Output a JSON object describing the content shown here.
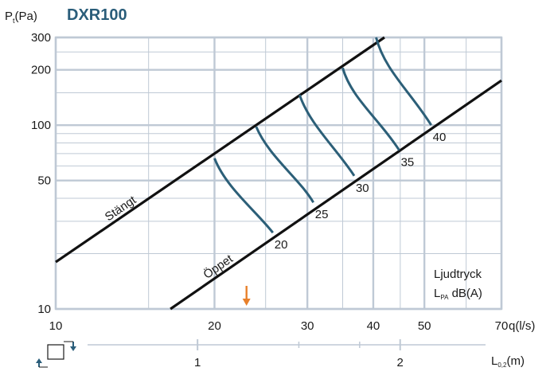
{
  "chart_data": {
    "type": "line",
    "title": "DXR100",
    "ylabel": {
      "main": "P",
      "sub": "t",
      "tail": "(Pa)"
    },
    "xlabel": "q(l/s)",
    "x_scale": "log",
    "y_scale": "log",
    "xlim": [
      10,
      70
    ],
    "ylim": [
      10,
      300
    ],
    "x_ticks": [
      10,
      20,
      30,
      40,
      50,
      70
    ],
    "x_tick_labels": [
      "10",
      "20",
      "30",
      "40",
      "50",
      "70"
    ],
    "y_ticks": [
      10,
      50,
      100,
      200,
      300
    ],
    "y_tick_labels": [
      "10",
      "50",
      "100",
      "200",
      "300"
    ],
    "x_minor_grid": [
      15,
      25,
      35,
      45,
      60
    ],
    "y_minor_grid": [
      20,
      30,
      40,
      60,
      70,
      80,
      90,
      150,
      250
    ],
    "grid": true,
    "boundary_lines": [
      {
        "name": "Stängt",
        "points": [
          [
            10,
            18.0
          ],
          [
            42.0,
            300
          ]
        ]
      },
      {
        "name": "Öppet",
        "points": [
          [
            16.5,
            10
          ],
          [
            70,
            175
          ]
        ]
      }
    ],
    "sound_curves": [
      {
        "label": "20",
        "points": [
          [
            20.0,
            66
          ],
          [
            21.0,
            46
          ],
          [
            24.0,
            34
          ],
          [
            25.8,
            26
          ]
        ]
      },
      {
        "label": "25",
        "points": [
          [
            24.0,
            98
          ],
          [
            25.3,
            68
          ],
          [
            29.0,
            51
          ],
          [
            30.8,
            38
          ]
        ]
      },
      {
        "label": "30",
        "points": [
          [
            29.0,
            146
          ],
          [
            30.3,
            101
          ],
          [
            34.0,
            75
          ],
          [
            36.8,
            53
          ]
        ]
      },
      {
        "label": "35",
        "points": [
          [
            35.0,
            205
          ],
          [
            36.3,
            141
          ],
          [
            41.0,
            108
          ],
          [
            44.8,
            73
          ]
        ]
      },
      {
        "label": "40",
        "points": [
          [
            40.5,
            300
          ],
          [
            42.0,
            200
          ],
          [
            47.0,
            152
          ],
          [
            51.5,
            100
          ]
        ]
      }
    ],
    "annotation": {
      "line1": "Ljudtryck",
      "line2_main": "L",
      "line2_sub": "PA",
      "line2_tail": " dB(A)"
    },
    "marker": {
      "x": 23.0,
      "color": "#e8802a"
    },
    "colors": {
      "grid": "#bfc9d5",
      "boundary": "#111111",
      "curve": "#2c5f78",
      "title": "#2a5d7a"
    },
    "throw_axis": {
      "ticks": [
        1,
        2
      ],
      "tick_labels": [
        "1",
        "2"
      ],
      "minor_ticks": [
        1.5,
        1.8
      ],
      "range": [
        0.3,
        2.5
      ],
      "label": {
        "main": "L",
        "sub": "0,2",
        "tail": "(m)"
      },
      "icon": "airflow-direction-icon"
    }
  }
}
